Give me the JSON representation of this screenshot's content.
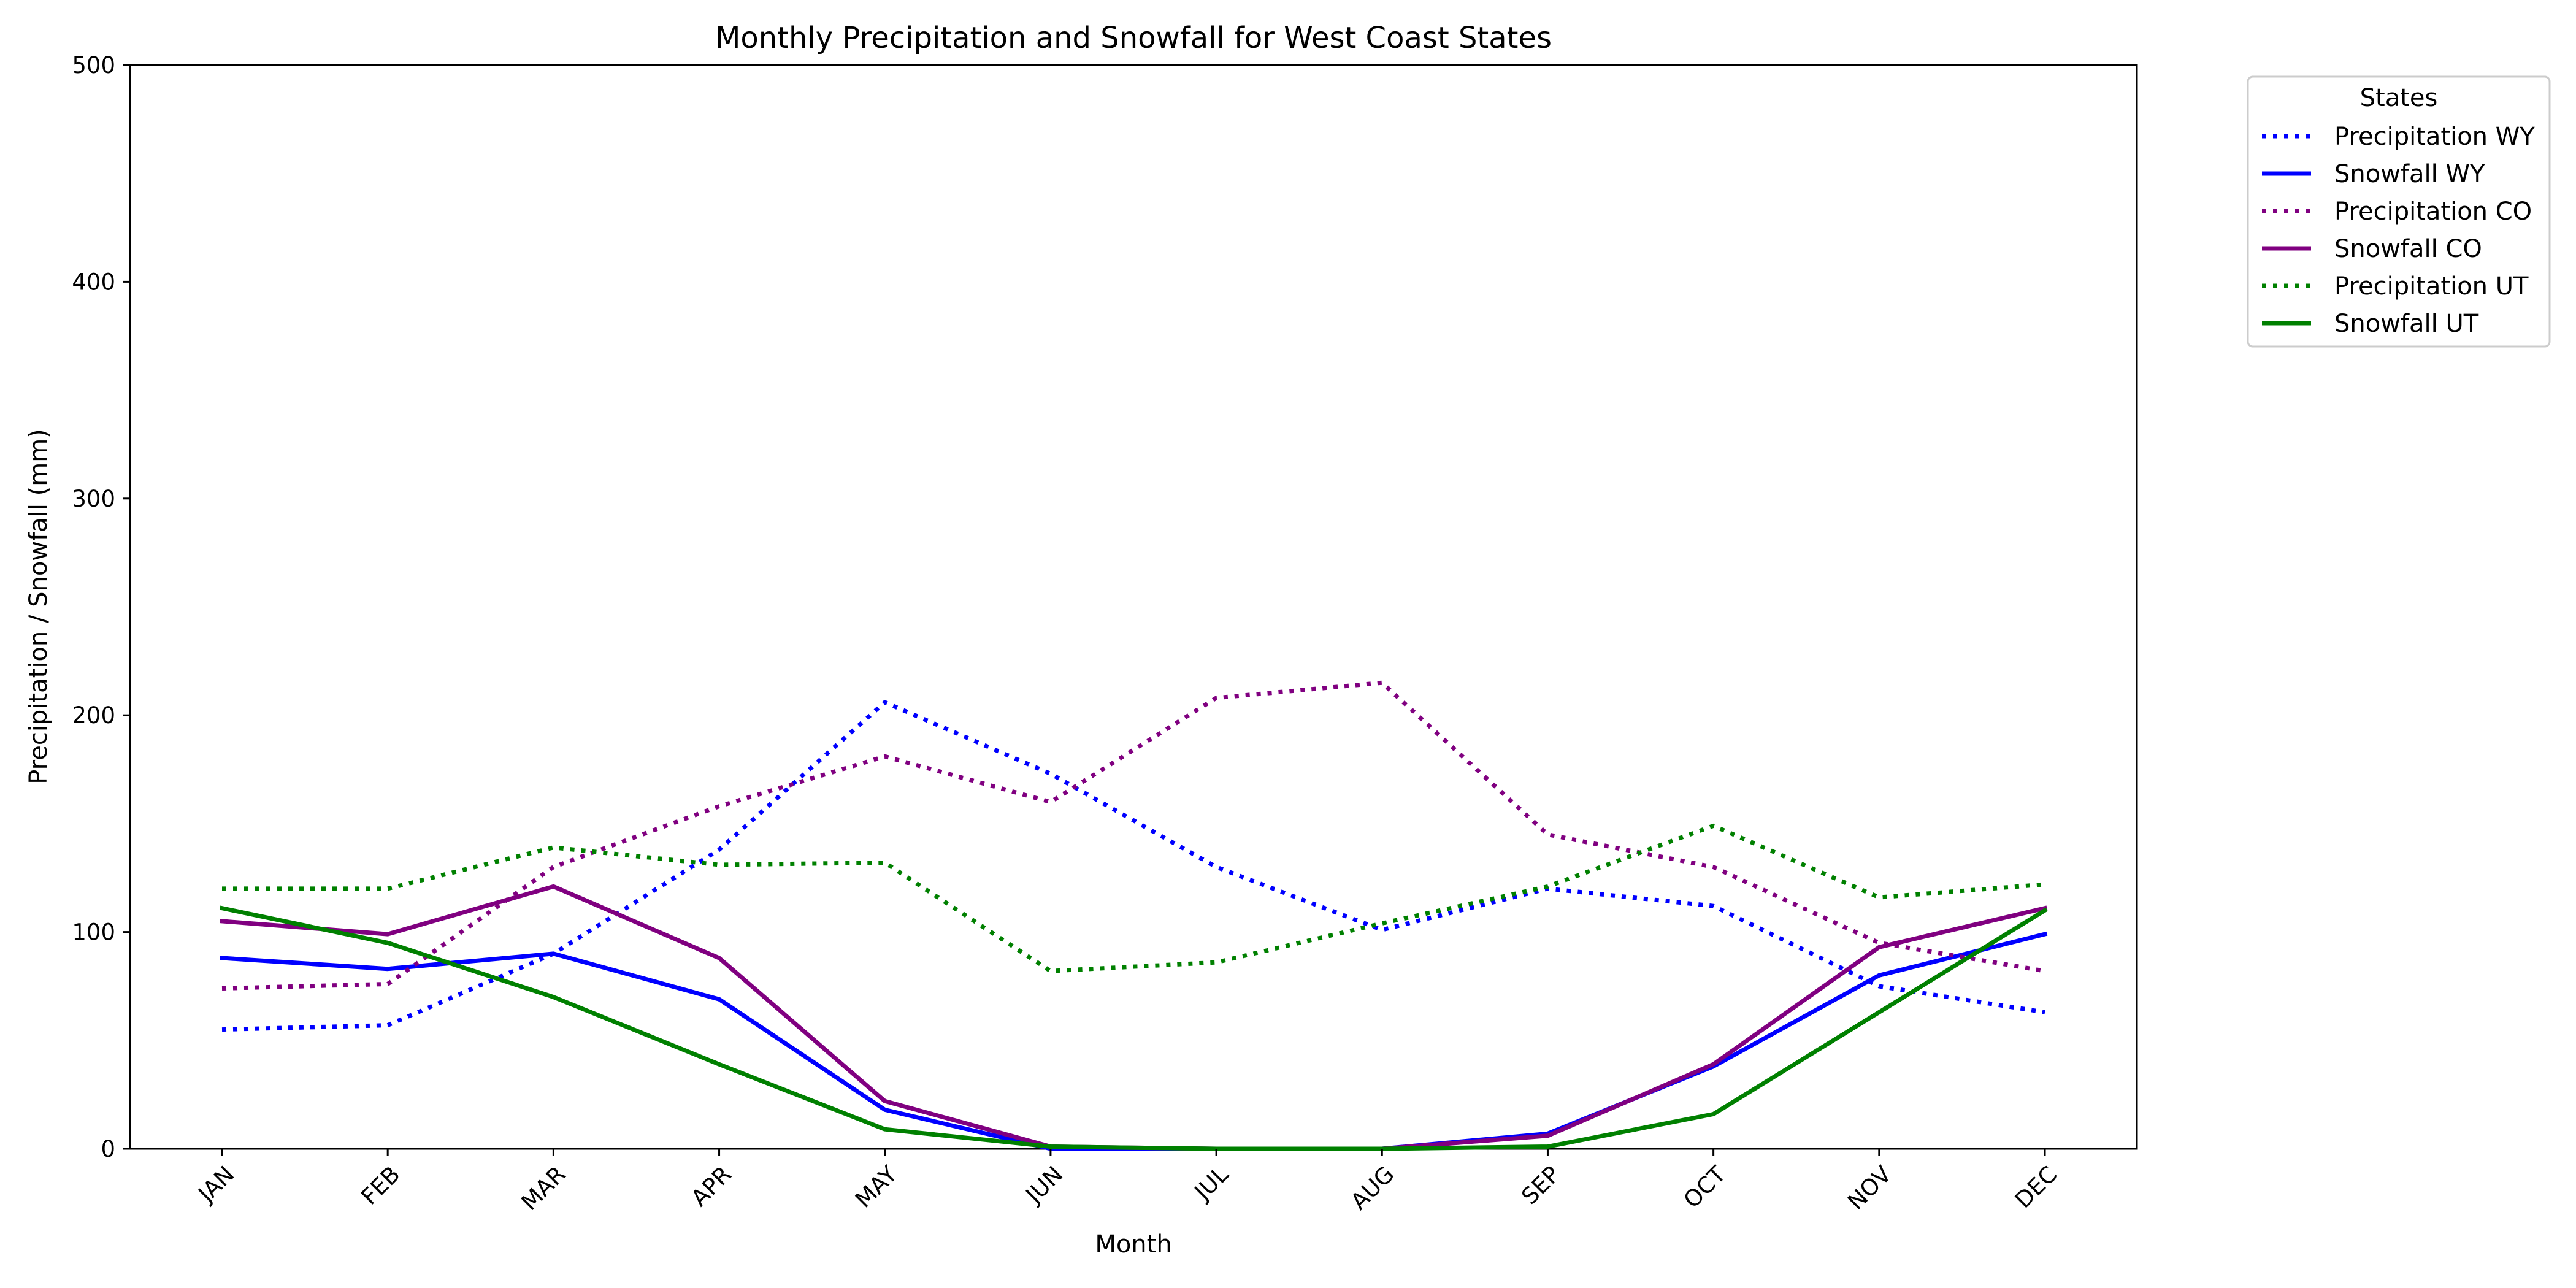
{
  "chart_data": {
    "type": "line",
    "title": "Monthly Precipitation and Snowfall for West Coast States",
    "xlabel": "Month",
    "ylabel": "Precipitation / Snowfall (mm)",
    "categories": [
      "JAN",
      "FEB",
      "MAR",
      "APR",
      "MAY",
      "JUN",
      "JUL",
      "AUG",
      "SEP",
      "OCT",
      "NOV",
      "DEC"
    ],
    "ylim": [
      0,
      500
    ],
    "yticks": [
      0,
      100,
      200,
      300,
      400,
      500
    ],
    "grid": false,
    "legend": {
      "title": "States",
      "placement": "outside-top-right"
    },
    "series": [
      {
        "name": "Precipitation WY",
        "color": "#0000ff",
        "style": "dotted",
        "values": [
          55,
          57,
          90,
          138,
          206,
          173,
          130,
          101,
          120,
          112,
          75,
          63
        ]
      },
      {
        "name": "Snowfall WY",
        "color": "#0000ff",
        "style": "solid",
        "values": [
          88,
          83,
          90,
          69,
          18,
          0,
          0,
          0,
          7,
          38,
          80,
          99
        ]
      },
      {
        "name": "Precipitation CO",
        "color": "#800080",
        "style": "dotted",
        "values": [
          74,
          76,
          130,
          158,
          181,
          160,
          208,
          215,
          145,
          130,
          95,
          82
        ]
      },
      {
        "name": "Snowfall CO",
        "color": "#800080",
        "style": "solid",
        "values": [
          105,
          99,
          121,
          88,
          22,
          1,
          0,
          0,
          6,
          39,
          93,
          111
        ]
      },
      {
        "name": "Precipitation UT",
        "color": "#008000",
        "style": "dotted",
        "values": [
          120,
          120,
          139,
          131,
          132,
          82,
          86,
          104,
          121,
          149,
          116,
          122
        ]
      },
      {
        "name": "Snowfall UT",
        "color": "#008000",
        "style": "solid",
        "values": [
          111,
          95,
          70,
          39,
          9,
          1,
          0,
          0,
          1,
          16,
          63,
          110
        ]
      }
    ]
  }
}
